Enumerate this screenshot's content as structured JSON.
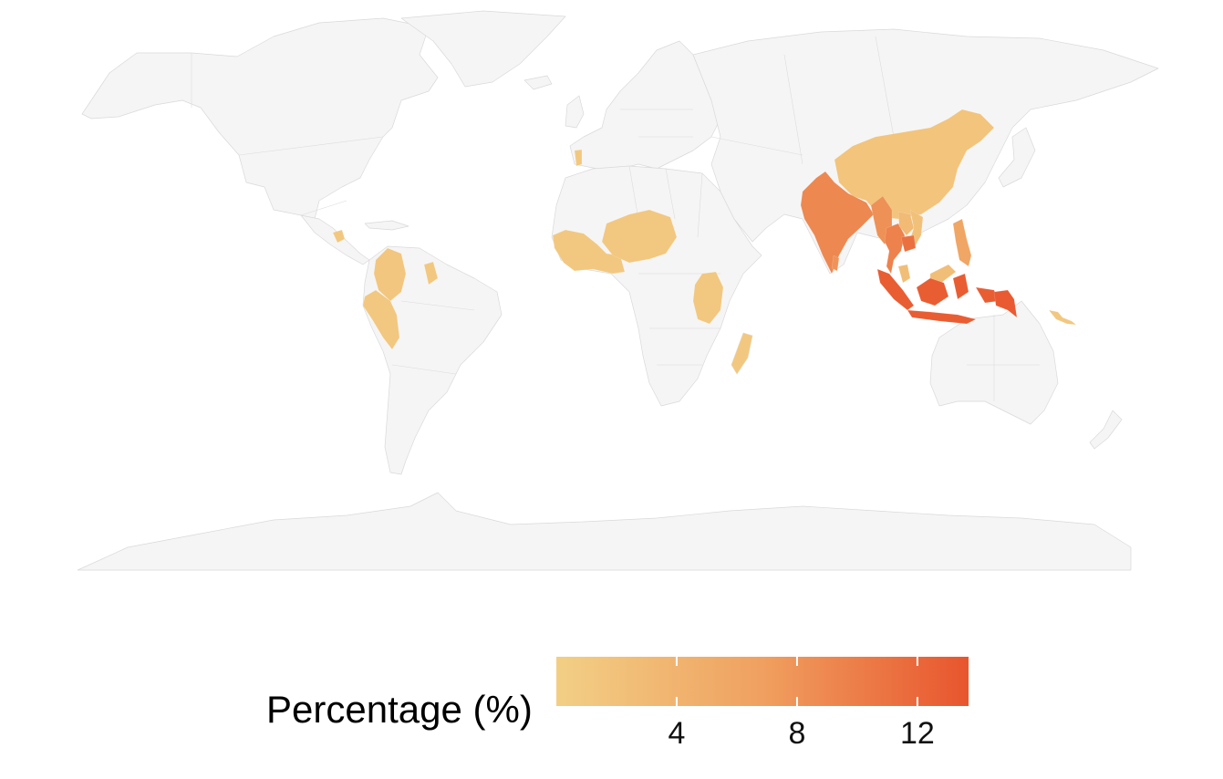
{
  "map": {
    "highlight_colors": {
      "low": "#f2cf85",
      "mid": "#f0a060",
      "high": "#e8552e"
    },
    "base_land_color": "#f5f5f5",
    "countries": [
      {
        "name": "Portugal",
        "value": 1.0
      },
      {
        "name": "Guatemala",
        "value": 1.0
      },
      {
        "name": "Colombia",
        "value": 1.3
      },
      {
        "name": "Guyana",
        "value": 1.0
      },
      {
        "name": "Peru",
        "value": 1.2
      },
      {
        "name": "West Africa",
        "value": 1.0
      },
      {
        "name": "Niger",
        "value": 1.2
      },
      {
        "name": "Tanzania",
        "value": 1.2
      },
      {
        "name": "Madagascar",
        "value": 1.0
      },
      {
        "name": "China",
        "value": 1.6
      },
      {
        "name": "India",
        "value": 9.0
      },
      {
        "name": "Myanmar",
        "value": 8.2
      },
      {
        "name": "Thailand",
        "value": 9.6
      },
      {
        "name": "Cambodia",
        "value": 11.2
      },
      {
        "name": "Vietnam",
        "value": 2.0
      },
      {
        "name": "Laos",
        "value": 3.0
      },
      {
        "name": "Sri Lanka",
        "value": 8.0
      },
      {
        "name": "Philippines",
        "value": 6.0
      },
      {
        "name": "Malaysia",
        "value": 2.5
      },
      {
        "name": "Indonesia",
        "value": 13.0
      },
      {
        "name": "Papua New Guinea",
        "value": 13.2
      },
      {
        "name": "Solomon Islands",
        "value": 1.0
      }
    ]
  },
  "legend": {
    "title": "Percentage (%)",
    "min": 0.0,
    "max": 13.7,
    "ticks": [
      "4",
      "8",
      "12"
    ],
    "tick_values": [
      4,
      8,
      12
    ],
    "color_low": "#f2cf85",
    "color_high": "#e8552e"
  }
}
